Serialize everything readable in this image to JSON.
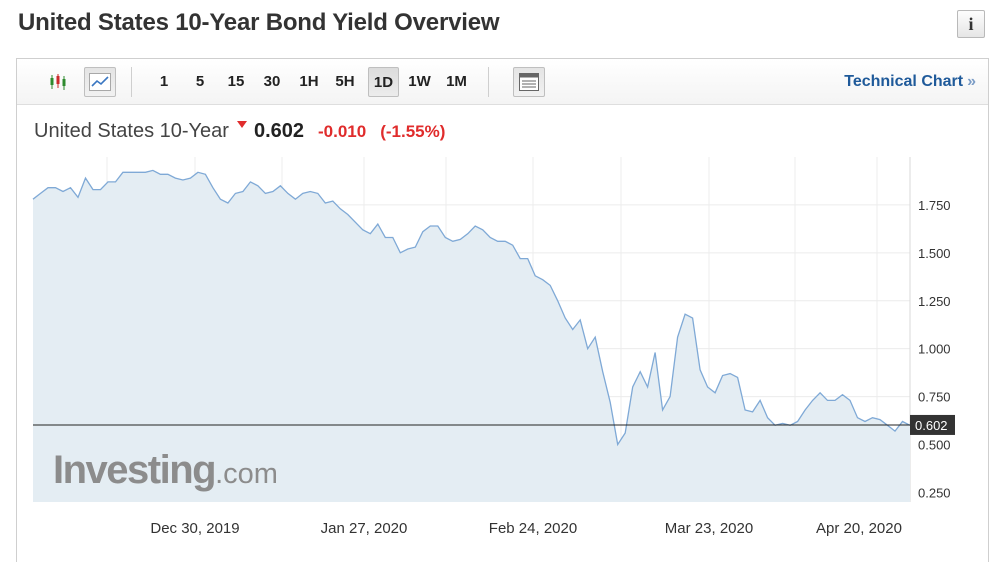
{
  "page": {
    "title": "United States 10-Year Bond Yield Overview",
    "info_icon": "i"
  },
  "toolbar": {
    "chart_types": [
      {
        "name": "candlestick-icon",
        "active": false
      },
      {
        "name": "line-chart-icon",
        "active": true
      }
    ],
    "intervals": [
      {
        "label": "1",
        "selected": false
      },
      {
        "label": "5",
        "selected": false
      },
      {
        "label": "15",
        "selected": false
      },
      {
        "label": "30",
        "selected": false
      },
      {
        "label": "1H",
        "selected": false
      },
      {
        "label": "5H",
        "selected": false
      },
      {
        "label": "1D",
        "selected": true
      },
      {
        "label": "1W",
        "selected": false
      },
      {
        "label": "1M",
        "selected": false
      }
    ],
    "technical_chart_label": "Technical Chart",
    "technical_chart_arrows": "»"
  },
  "quote": {
    "name": "United States 10-Year",
    "last": "0.602",
    "change": "-0.010",
    "change_pct": "(-1.55%)",
    "direction": "down",
    "down_color": "#e02c2c"
  },
  "watermark": {
    "main": "Investing",
    "suffix": ".com"
  },
  "chart_data": {
    "type": "area",
    "title": "",
    "xlabel": "",
    "ylabel": "",
    "ylim": [
      0.2,
      2.0
    ],
    "yticks": [
      "0.250",
      "0.500",
      "0.750",
      "1.000",
      "1.250",
      "1.500",
      "1.750"
    ],
    "x_tick_labels": [
      "Dec 30, 2019",
      "Jan 27, 2020",
      "Feb 24, 2020",
      "Mar 23, 2020",
      "Apr 20, 2020"
    ],
    "grid": true,
    "last_value": 0.602,
    "last_value_label": "0.602",
    "line_color": "#7fa9d6",
    "fill_color": "#e4edf3",
    "series": [
      {
        "values": [
          1.78,
          1.81,
          1.84,
          1.84,
          1.82,
          1.84,
          1.79,
          1.89,
          1.83,
          1.83,
          1.87,
          1.87,
          1.92,
          1.92,
          1.92,
          1.92,
          1.93,
          1.91,
          1.91,
          1.89,
          1.88,
          1.89,
          1.92,
          1.91,
          1.84,
          1.78,
          1.76,
          1.81,
          1.82,
          1.87,
          1.85,
          1.81,
          1.82,
          1.85,
          1.81,
          1.78,
          1.81,
          1.82,
          1.81,
          1.76,
          1.77,
          1.73,
          1.7,
          1.66,
          1.62,
          1.6,
          1.65,
          1.58,
          1.58,
          1.5,
          1.52,
          1.53,
          1.61,
          1.64,
          1.64,
          1.58,
          1.56,
          1.57,
          1.6,
          1.64,
          1.62,
          1.58,
          1.56,
          1.56,
          1.54,
          1.47,
          1.47,
          1.38,
          1.36,
          1.33,
          1.25,
          1.16,
          1.1,
          1.15,
          1.0,
          1.06,
          0.88,
          0.72,
          0.5,
          0.56,
          0.8,
          0.88,
          0.8,
          0.98,
          0.68,
          0.75,
          1.06,
          1.18,
          1.16,
          0.89,
          0.8,
          0.77,
          0.86,
          0.87,
          0.85,
          0.68,
          0.67,
          0.73,
          0.64,
          0.6,
          0.61,
          0.6,
          0.62,
          0.68,
          0.73,
          0.77,
          0.73,
          0.73,
          0.76,
          0.73,
          0.64,
          0.62,
          0.64,
          0.63,
          0.6,
          0.57,
          0.62,
          0.6
        ]
      }
    ]
  }
}
